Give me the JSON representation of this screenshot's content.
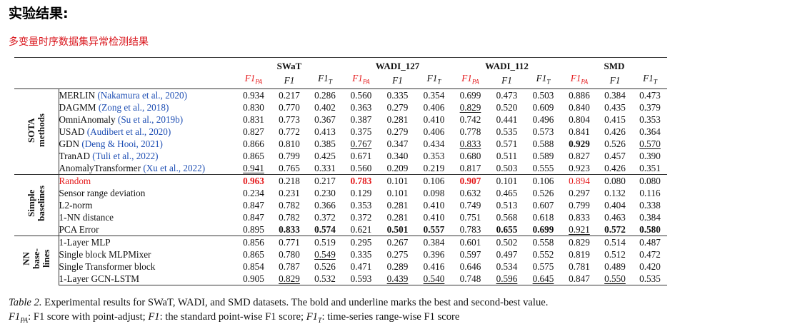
{
  "heading": "实验结果:",
  "subheading": "多变量时序数据集异常检测结果",
  "table": {
    "datasets": [
      "SWaT",
      "WADI_127",
      "WADI_112",
      "SMD"
    ],
    "metrics": [
      {
        "base": "F1",
        "sub": "PA",
        "color": "#e41a1c"
      },
      {
        "base": "F1",
        "sub": "",
        "color": "#111111"
      },
      {
        "base": "F1",
        "sub": "T",
        "color": "#111111"
      }
    ],
    "groups": [
      {
        "label_lines": [
          "SOTA",
          "methods"
        ],
        "rows": [
          {
            "name": "MERLIN",
            "cite": "(Nakamura et al., 2020)",
            "values": [
              "0.934",
              "0.217",
              "0.286",
              "0.560",
              "0.335",
              "0.354",
              "0.699",
              "0.473",
              "0.503",
              "0.886",
              "0.384",
              "0.473"
            ],
            "bold": [],
            "underline": []
          },
          {
            "name": "DAGMM",
            "cite": "(Zong et al., 2018)",
            "values": [
              "0.830",
              "0.770",
              "0.402",
              "0.363",
              "0.279",
              "0.406",
              "0.829",
              "0.520",
              "0.609",
              "0.840",
              "0.435",
              "0.379"
            ],
            "bold": [],
            "underline": [
              6
            ]
          },
          {
            "name": "OmniAnomaly",
            "cite": "(Su et al., 2019b)",
            "values": [
              "0.831",
              "0.773",
              "0.367",
              "0.387",
              "0.281",
              "0.410",
              "0.742",
              "0.441",
              "0.496",
              "0.804",
              "0.415",
              "0.353"
            ],
            "bold": [],
            "underline": []
          },
          {
            "name": "USAD",
            "cite": "(Audibert et al., 2020)",
            "values": [
              "0.827",
              "0.772",
              "0.413",
              "0.375",
              "0.279",
              "0.406",
              "0.778",
              "0.535",
              "0.573",
              "0.841",
              "0.426",
              "0.364"
            ],
            "bold": [],
            "underline": []
          },
          {
            "name": "GDN",
            "cite": "(Deng & Hooi, 2021)",
            "values": [
              "0.866",
              "0.810",
              "0.385",
              "0.767",
              "0.347",
              "0.434",
              "0.833",
              "0.571",
              "0.588",
              "0.929",
              "0.526",
              "0.570"
            ],
            "bold": [
              9
            ],
            "underline": [
              3,
              6,
              11
            ]
          },
          {
            "name": "TranAD",
            "cite": "(Tuli et al., 2022)",
            "values": [
              "0.865",
              "0.799",
              "0.425",
              "0.671",
              "0.340",
              "0.353",
              "0.680",
              "0.511",
              "0.589",
              "0.827",
              "0.457",
              "0.390"
            ],
            "bold": [],
            "underline": []
          },
          {
            "name": "AnomalyTransformer",
            "cite": "(Xu et al., 2022)",
            "values": [
              "0.941",
              "0.765",
              "0.331",
              "0.560",
              "0.209",
              "0.219",
              "0.817",
              "0.503",
              "0.555",
              "0.923",
              "0.426",
              "0.351"
            ],
            "bold": [],
            "underline": [
              0
            ]
          }
        ]
      },
      {
        "label_lines": [
          "Simple",
          "baselines"
        ],
        "rows": [
          {
            "name": "Random",
            "cite": "",
            "red": true,
            "values": [
              "0.963",
              "0.218",
              "0.217",
              "0.783",
              "0.101",
              "0.106",
              "0.907",
              "0.101",
              "0.106",
              "0.894",
              "0.080",
              "0.080"
            ],
            "bold": [
              0,
              3,
              6
            ],
            "underline": [],
            "red_values": [
              0,
              3,
              6,
              9
            ]
          },
          {
            "name": "Sensor range deviation",
            "cite": "",
            "values": [
              "0.234",
              "0.231",
              "0.230",
              "0.129",
              "0.101",
              "0.098",
              "0.632",
              "0.465",
              "0.526",
              "0.297",
              "0.132",
              "0.116"
            ],
            "bold": [],
            "underline": []
          },
          {
            "name": "L2-norm",
            "cite": "",
            "values": [
              "0.847",
              "0.782",
              "0.366",
              "0.353",
              "0.281",
              "0.410",
              "0.749",
              "0.513",
              "0.607",
              "0.799",
              "0.404",
              "0.338"
            ],
            "bold": [],
            "underline": []
          },
          {
            "name": "1-NN distance",
            "cite": "",
            "values": [
              "0.847",
              "0.782",
              "0.372",
              "0.372",
              "0.281",
              "0.410",
              "0.751",
              "0.568",
              "0.618",
              "0.833",
              "0.463",
              "0.384"
            ],
            "bold": [],
            "underline": []
          },
          {
            "name": "PCA Error",
            "cite": "",
            "values": [
              "0.895",
              "0.833",
              "0.574",
              "0.621",
              "0.501",
              "0.557",
              "0.783",
              "0.655",
              "0.699",
              "0.921",
              "0.572",
              "0.580"
            ],
            "bold": [
              1,
              2,
              4,
              5,
              7,
              8,
              10,
              11
            ],
            "underline": [
              9
            ]
          }
        ]
      },
      {
        "label_lines": [
          "NN",
          "base-",
          "lines"
        ],
        "rows": [
          {
            "name": "1-Layer MLP",
            "cite": "",
            "values": [
              "0.856",
              "0.771",
              "0.519",
              "0.295",
              "0.267",
              "0.384",
              "0.601",
              "0.502",
              "0.558",
              "0.829",
              "0.514",
              "0.487"
            ],
            "bold": [],
            "underline": []
          },
          {
            "name": "Single block MLPMixer",
            "cite": "",
            "values": [
              "0.865",
              "0.780",
              "0.549",
              "0.335",
              "0.275",
              "0.396",
              "0.597",
              "0.497",
              "0.552",
              "0.819",
              "0.512",
              "0.472"
            ],
            "bold": [],
            "underline": [
              2
            ]
          },
          {
            "name": "Single Transformer block",
            "cite": "",
            "values": [
              "0.854",
              "0.787",
              "0.526",
              "0.471",
              "0.289",
              "0.416",
              "0.646",
              "0.534",
              "0.575",
              "0.781",
              "0.489",
              "0.420"
            ],
            "bold": [],
            "underline": []
          },
          {
            "name": "1-Layer GCN-LSTM",
            "cite": "",
            "values": [
              "0.905",
              "0.829",
              "0.532",
              "0.593",
              "0.439",
              "0.540",
              "0.748",
              "0.596",
              "0.645",
              "0.847",
              "0.550",
              "0.535"
            ],
            "bold": [],
            "underline": [
              1,
              4,
              5,
              7,
              8,
              10
            ]
          }
        ]
      }
    ]
  },
  "caption": {
    "tag": "Table 2.",
    "text": "Experimental results for SWaT, WADI, and SMD datasets.  The bold and underline marks the best and second-best value.",
    "legend": [
      {
        "symbol_base": "F1",
        "symbol_sub": "PA",
        "desc": ": F1 score with point-adjust; "
      },
      {
        "symbol_base": "F1",
        "symbol_sub": "",
        "desc": ": the standard point-wise F1 score; "
      },
      {
        "symbol_base": "F1",
        "symbol_sub": "T",
        "desc": ": time-series range-wise F1 score"
      }
    ]
  },
  "colors": {
    "accent_red": "#e41a1c",
    "heading_red": "#d9141b",
    "citation_blue": "#1f4fb4"
  }
}
